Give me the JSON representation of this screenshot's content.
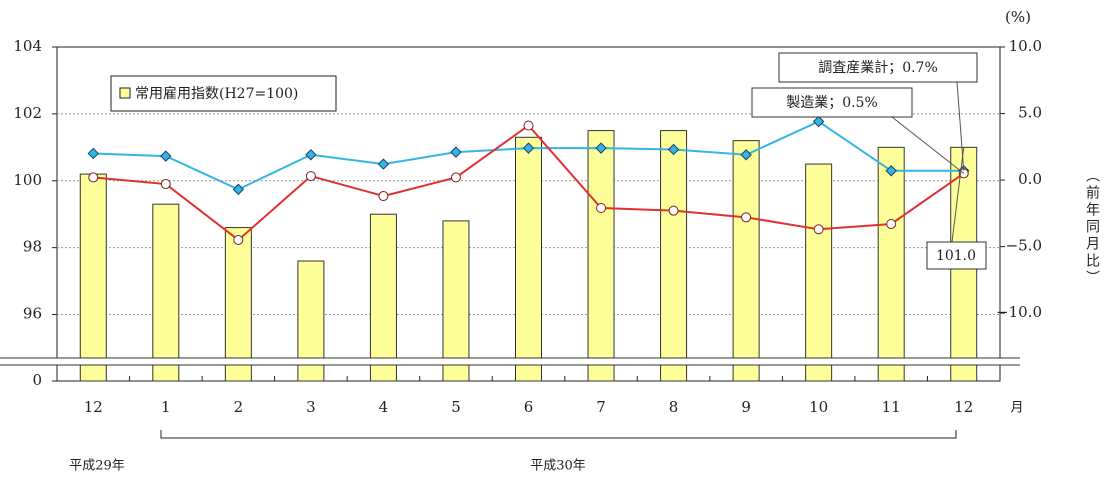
{
  "chart_data": {
    "type": "bar",
    "categories": [
      "12",
      "1",
      "2",
      "3",
      "4",
      "5",
      "6",
      "7",
      "8",
      "9",
      "10",
      "11",
      "12"
    ],
    "series": [
      {
        "name": "常用雇用指数(H27=100)",
        "color": "#ffff99",
        "values": [
          100.2,
          99.3,
          98.6,
          97.6,
          99.0,
          98.8,
          101.3,
          101.5,
          101.5,
          101.2,
          100.5,
          101.0,
          101.0
        ],
        "value_labels": [
          null,
          null,
          null,
          null,
          null,
          null,
          null,
          null,
          null,
          null,
          null,
          null,
          "101.0"
        ]
      },
      {
        "type": "line",
        "axis": "y2",
        "color": "#33b5e5",
        "values": [
          2.0,
          1.8,
          -0.7,
          1.9,
          1.2,
          2.1,
          2.4,
          2.4,
          2.3,
          1.9,
          4.4,
          0.7,
          0.7
        ]
      },
      {
        "type": "line",
        "axis": "y2",
        "color": "#e03030",
        "values": [
          0.2,
          -0.3,
          -4.5,
          0.3,
          -1.2,
          0.2,
          4.1,
          -2.1,
          -2.3,
          -2.8,
          -3.7,
          -3.3,
          0.5
        ]
      }
    ],
    "annotations": [
      {
        "text": "調査産業計；0.7%"
      },
      {
        "text": "製造業；0.5%"
      }
    ],
    "ylim": [
      0,
      104
    ],
    "axis_break": [
      0,
      94.7
    ],
    "yticks": [
      0,
      96,
      98,
      100,
      102,
      104
    ],
    "y2lim": [
      -15.1,
      10
    ],
    "y2ticks": [
      {
        "value": -10,
        "label": "−10.0"
      },
      {
        "value": -5,
        "label": "−5.0"
      },
      {
        "value": 0,
        "label": "0.0"
      },
      {
        "value": 5,
        "label": "5.0"
      },
      {
        "value": 10,
        "label": "10.0"
      }
    ],
    "y2_unit": "(%)",
    "y2_label": "（前年同月比）",
    "x_unit": "月",
    "era_labels": [
      "平成29年",
      "平成30年"
    ],
    "grid": true
  }
}
